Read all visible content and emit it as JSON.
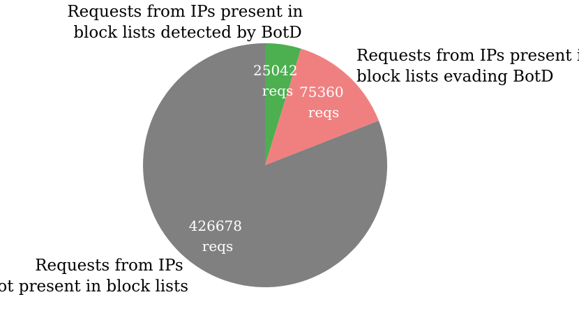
{
  "chart_data": {
    "type": "pie",
    "title": "",
    "slices": [
      {
        "label_lines": [
          "Requests from IPs present in",
          "block lists detected by BotD"
        ],
        "value": 25042,
        "value_lines": [
          "25042",
          "reqs"
        ],
        "color": "#4caf50"
      },
      {
        "label_lines": [
          "Requests from IPs present in",
          "block lists evading BotD"
        ],
        "value": 75360,
        "value_lines": [
          "75360",
          "reqs"
        ],
        "color": "#f08080"
      },
      {
        "label_lines": [
          "Requests from IPs",
          "not present in block lists"
        ],
        "value": 426678,
        "value_lines": [
          "426678",
          "reqs"
        ],
        "color": "#808080"
      }
    ],
    "start_angle": "12 o'clock",
    "direction": "clockwise",
    "legend": "none"
  }
}
